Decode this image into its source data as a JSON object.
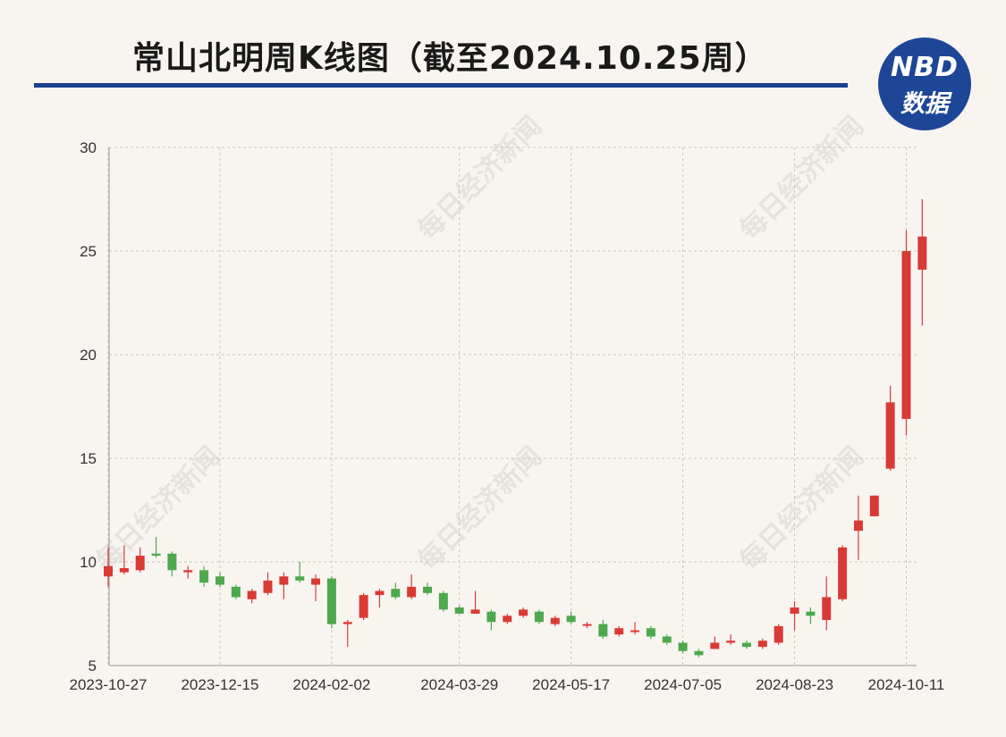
{
  "title": "常山北明周K线图（截至2024.10.25周）",
  "logo": {
    "top": "NBD",
    "bottom": "数据"
  },
  "watermark": "每日经济新闻",
  "colors": {
    "up": "#d93a35",
    "down": "#4ea84c",
    "title_rule": "#1b3f8f",
    "logo_bg": "#1d4697"
  },
  "chart_data": {
    "type": "candlestick",
    "ylim": [
      5,
      30
    ],
    "y_ticks": [
      5,
      10,
      15,
      20,
      25,
      30
    ],
    "x_tick_labels": [
      "2023-10-27",
      "2023-12-15",
      "2024-02-02",
      "2024-03-29",
      "2024-05-17",
      "2024-07-05",
      "2024-08-23",
      "2024-10-11"
    ],
    "x_tick_indices": [
      0,
      7,
      14,
      22,
      29,
      36,
      43,
      50
    ],
    "grid": true,
    "candles": [
      {
        "week": 0,
        "open": 9.3,
        "close": 9.8,
        "high": 10.7,
        "low": 8.8
      },
      {
        "week": 1,
        "open": 9.5,
        "close": 9.7,
        "high": 10.8,
        "low": 9.4
      },
      {
        "week": 2,
        "open": 9.6,
        "close": 10.3,
        "high": 10.7,
        "low": 9.5
      },
      {
        "week": 3,
        "open": 10.4,
        "close": 10.3,
        "high": 11.2,
        "low": 10.2
      },
      {
        "week": 4,
        "open": 10.4,
        "close": 9.6,
        "high": 10.5,
        "low": 9.3
      },
      {
        "week": 5,
        "open": 9.5,
        "close": 9.6,
        "high": 9.8,
        "low": 9.2
      },
      {
        "week": 6,
        "open": 9.6,
        "close": 9.0,
        "high": 9.8,
        "low": 8.8
      },
      {
        "week": 7,
        "open": 9.3,
        "close": 8.9,
        "high": 9.5,
        "low": 8.8
      },
      {
        "week": 8,
        "open": 8.8,
        "close": 8.3,
        "high": 8.9,
        "low": 8.2
      },
      {
        "week": 9,
        "open": 8.2,
        "close": 8.6,
        "high": 8.7,
        "low": 8.0
      },
      {
        "week": 10,
        "open": 8.5,
        "close": 9.1,
        "high": 9.5,
        "low": 8.4
      },
      {
        "week": 11,
        "open": 8.9,
        "close": 9.3,
        "high": 9.5,
        "low": 8.2
      },
      {
        "week": 12,
        "open": 9.3,
        "close": 9.1,
        "high": 10.0,
        "low": 9.0
      },
      {
        "week": 13,
        "open": 8.9,
        "close": 9.2,
        "high": 9.4,
        "low": 8.1
      },
      {
        "week": 14,
        "open": 9.2,
        "close": 7.0,
        "high": 9.3,
        "low": 6.8
      },
      {
        "week": 15,
        "open": 7.0,
        "close": 7.1,
        "high": 7.2,
        "low": 5.9
      },
      {
        "week": 16,
        "open": 7.3,
        "close": 8.4,
        "high": 8.5,
        "low": 7.2
      },
      {
        "week": 17,
        "open": 8.4,
        "close": 8.6,
        "high": 8.7,
        "low": 7.8
      },
      {
        "week": 18,
        "open": 8.7,
        "close": 8.3,
        "high": 9.0,
        "low": 8.2
      },
      {
        "week": 19,
        "open": 8.3,
        "close": 8.8,
        "high": 9.4,
        "low": 8.2
      },
      {
        "week": 20,
        "open": 8.8,
        "close": 8.5,
        "high": 9.0,
        "low": 8.4
      },
      {
        "week": 21,
        "open": 8.5,
        "close": 7.7,
        "high": 8.6,
        "low": 7.6
      },
      {
        "week": 22,
        "open": 7.8,
        "close": 7.5,
        "high": 7.9,
        "low": 7.5
      },
      {
        "week": 23,
        "open": 7.5,
        "close": 7.7,
        "high": 8.6,
        "low": 7.5
      },
      {
        "week": 24,
        "open": 7.6,
        "close": 7.1,
        "high": 7.7,
        "low": 6.7
      },
      {
        "week": 25,
        "open": 7.1,
        "close": 7.4,
        "high": 7.5,
        "low": 7.0
      },
      {
        "week": 26,
        "open": 7.4,
        "close": 7.7,
        "high": 7.8,
        "low": 7.3
      },
      {
        "week": 27,
        "open": 7.6,
        "close": 7.1,
        "high": 7.7,
        "low": 7.0
      },
      {
        "week": 28,
        "open": 7.0,
        "close": 7.3,
        "high": 7.4,
        "low": 6.9
      },
      {
        "week": 29,
        "open": 7.4,
        "close": 7.1,
        "high": 7.6,
        "low": 7.0
      },
      {
        "week": 30,
        "open": 7.0,
        "close": 7.0,
        "high": 7.1,
        "low": 6.8
      },
      {
        "week": 31,
        "open": 7.0,
        "close": 6.4,
        "high": 7.2,
        "low": 6.3
      },
      {
        "week": 32,
        "open": 6.5,
        "close": 6.8,
        "high": 6.9,
        "low": 6.4
      },
      {
        "week": 33,
        "open": 6.7,
        "close": 6.7,
        "high": 7.1,
        "low": 6.5
      },
      {
        "week": 34,
        "open": 6.8,
        "close": 6.4,
        "high": 6.9,
        "low": 6.3
      },
      {
        "week": 35,
        "open": 6.4,
        "close": 6.1,
        "high": 6.5,
        "low": 6.0
      },
      {
        "week": 36,
        "open": 6.1,
        "close": 5.7,
        "high": 6.2,
        "low": 5.6
      },
      {
        "week": 37,
        "open": 5.7,
        "close": 5.5,
        "high": 5.8,
        "low": 5.4
      },
      {
        "week": 38,
        "open": 5.8,
        "close": 6.1,
        "high": 6.4,
        "low": 5.8
      },
      {
        "week": 39,
        "open": 6.1,
        "close": 6.2,
        "high": 6.5,
        "low": 6.0
      },
      {
        "week": 40,
        "open": 6.1,
        "close": 5.9,
        "high": 6.2,
        "low": 5.8
      },
      {
        "week": 41,
        "open": 5.9,
        "close": 6.2,
        "high": 6.3,
        "low": 5.8
      },
      {
        "week": 42,
        "open": 6.1,
        "close": 6.9,
        "high": 7.0,
        "low": 6.0
      },
      {
        "week": 43,
        "open": 7.5,
        "close": 7.8,
        "high": 8.1,
        "low": 6.7
      },
      {
        "week": 44,
        "open": 7.6,
        "close": 7.4,
        "high": 7.8,
        "low": 7.0
      },
      {
        "week": 45,
        "open": 7.2,
        "close": 8.3,
        "high": 9.3,
        "low": 6.7
      },
      {
        "week": 46,
        "open": 8.2,
        "close": 10.7,
        "high": 10.8,
        "low": 8.1
      },
      {
        "week": 47,
        "open": 11.5,
        "close": 12.0,
        "high": 13.2,
        "low": 10.1
      },
      {
        "week": 48,
        "open": 12.2,
        "close": 13.2,
        "high": 13.2,
        "low": 12.2
      },
      {
        "week": 49,
        "open": 14.5,
        "close": 17.7,
        "high": 18.5,
        "low": 14.4
      },
      {
        "week": 50,
        "open": 16.9,
        "close": 25.0,
        "high": 26.0,
        "low": 16.1
      },
      {
        "week": 51,
        "open": 24.1,
        "close": 25.7,
        "high": 27.5,
        "low": 21.4
      }
    ]
  }
}
